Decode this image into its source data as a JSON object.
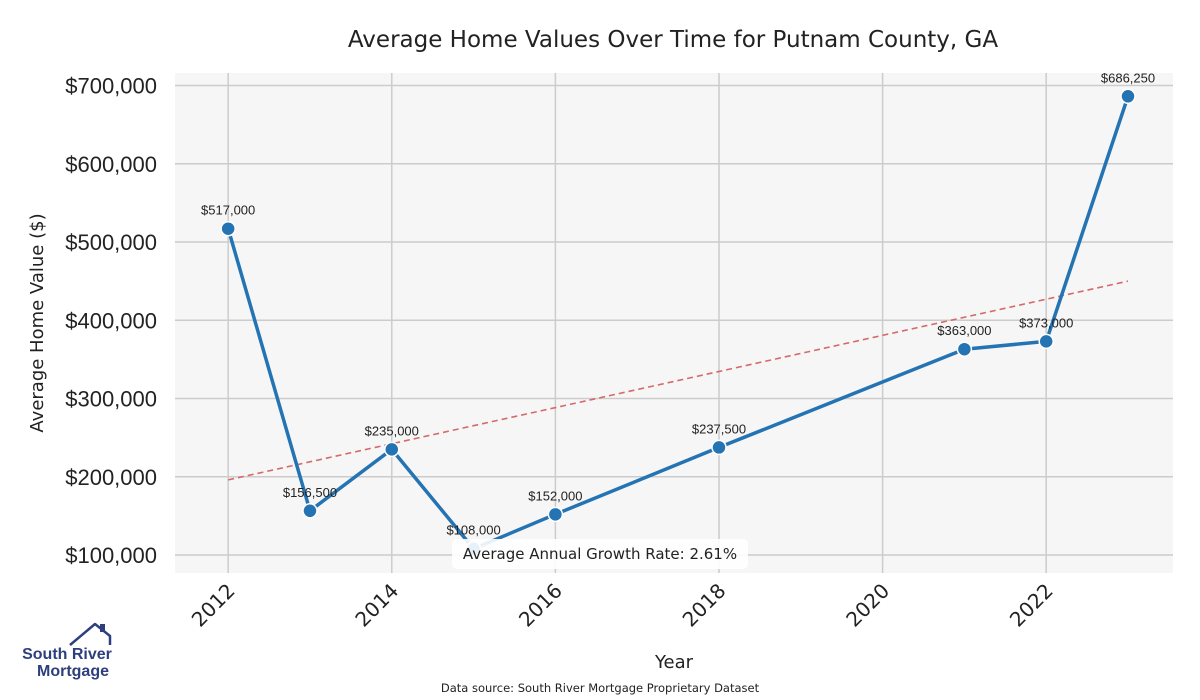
{
  "chart_data": {
    "type": "line",
    "title": "Average Home Values Over Time for Putnam County, GA",
    "xlabel": "Year",
    "ylabel": "Average Home Value ($)",
    "x": [
      2012,
      2013,
      2014,
      2015,
      2016,
      2018,
      2021,
      2022,
      2023
    ],
    "values": [
      517000,
      156500,
      235000,
      108000,
      152000,
      237500,
      363000,
      373000,
      686250
    ],
    "data_labels": [
      "$517,000",
      "$156,500",
      "$235,000",
      "$108,000",
      "$152,000",
      "$237,500",
      "$363,000",
      "$373,000",
      "$686,250"
    ],
    "xlim": [
      2011.35,
      2023.55
    ],
    "ylim": [
      77000,
      716000
    ],
    "xticks": [
      2012,
      2014,
      2016,
      2018,
      2020,
      2022
    ],
    "xtick_labels": [
      "2012",
      "2014",
      "2016",
      "2018",
      "2020",
      "2022"
    ],
    "yticks": [
      100000,
      200000,
      300000,
      400000,
      500000,
      600000,
      700000
    ],
    "ytick_labels": [
      "$100,000",
      "$200,000",
      "$300,000",
      "$400,000",
      "$500,000",
      "$600,000",
      "$700,000"
    ],
    "trendline": {
      "x": [
        2012,
        2023
      ],
      "y": [
        196000,
        450000
      ],
      "style": "dashed"
    },
    "grid": true,
    "annotation": "Average Annual Growth Rate: 2.61%",
    "colors": {
      "line": "#2474b4",
      "trend": "#d46a6a",
      "plot_bg": "#f6f6f6",
      "grid": "#cccccc"
    }
  },
  "footer": {
    "source": "Data source: South River Mortgage Proprietary Dataset"
  },
  "logo": {
    "line1": "South River",
    "line2": "Mortgage",
    "color": "#2d3f7c"
  }
}
